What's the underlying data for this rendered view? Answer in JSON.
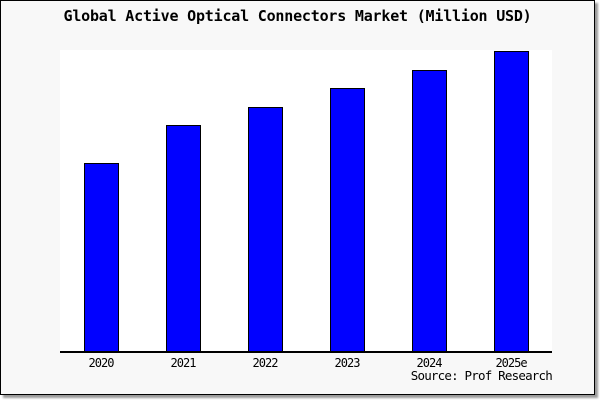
{
  "window": {
    "background": "#f8f8f8",
    "border_color": "#000000",
    "shadow_color": "#666666"
  },
  "header": {
    "title": "Global Active Optical Connectors Market (Million USD)"
  },
  "footer": {
    "source_label": "Source: Prof Research"
  },
  "chart_data": {
    "type": "bar",
    "title": "Global Active Optical Connectors Market (Million USD)",
    "categories": [
      "2020",
      "2021",
      "2022",
      "2023",
      "2024",
      "2025e"
    ],
    "values": [
      188,
      226,
      244,
      263,
      281,
      300
    ],
    "value_note": "No y-axis, gridlines or data labels are shown; values are relative bar heights in arbitrary units, normalized so 2025e = 300.",
    "xlabel": "",
    "ylabel": "",
    "ylim": [
      0,
      300
    ],
    "grid": false,
    "legend": false,
    "bar_color": "#0101ff",
    "bar_border_color": "#000000",
    "axis_color": "#000000",
    "plot_background": "#ffffff",
    "source": "Source: Prof Research"
  }
}
